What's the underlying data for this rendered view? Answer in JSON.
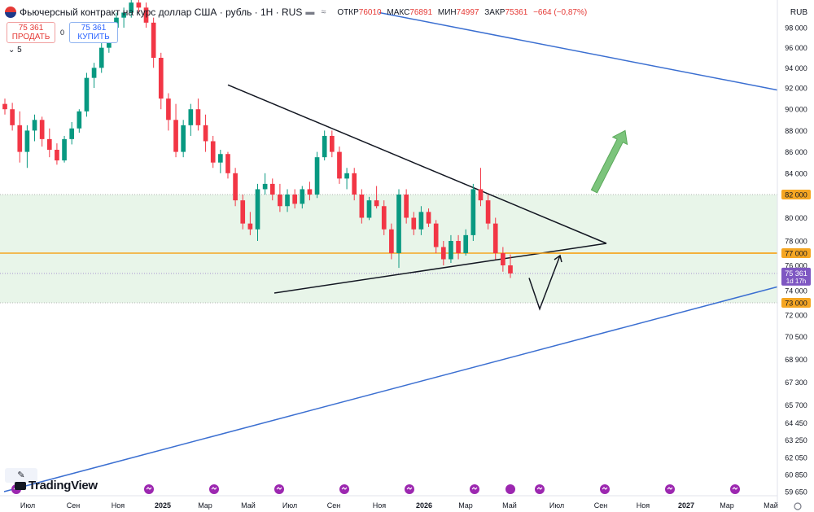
{
  "header": {
    "title": "Фьючерсный контракт на курс доллар США · рубль · 1Н · RUS",
    "open_label": "ОТКР",
    "open": "76010",
    "high_label": "МАКС",
    "high": "76891",
    "low_label": "МИН",
    "low": "74997",
    "close_label": "ЗАКР",
    "close": "75361",
    "change": "−664 (−0,87%)"
  },
  "trade": {
    "sell_price": "75 361",
    "sell_label": "ПРОДАТЬ",
    "spread": "0",
    "buy_price": "75 361",
    "buy_label": "КУПИТЬ"
  },
  "indicator_count": "5",
  "currency": "RUB",
  "logo_text": "TradingView",
  "colors": {
    "up": "#089981",
    "down": "#f23645",
    "zone": "#e8f5e9",
    "channel": "#3b6fd1",
    "triangle": "#131722",
    "level": "#f5a623",
    "arrow_green": "#7cc47c",
    "price_tag": "#7e57c2"
  },
  "chart_data": {
    "type": "candlestick",
    "x_ticks": [
      "Июл",
      "Сен",
      "Ноя",
      "2025",
      "Мар",
      "Май",
      "Июл",
      "Сен",
      "Ноя",
      "2026",
      "Мар",
      "Май",
      "Июл",
      "Сен",
      "Ноя",
      "2027",
      "Мар",
      "Май"
    ],
    "y_ticks": [
      "98 000",
      "96 000",
      "94 000",
      "92 000",
      "90 000",
      "88 000",
      "86 000",
      "84 000",
      "82 000",
      "80 000",
      "78 000",
      "77 000",
      "76 000",
      "74 000",
      "73 000",
      "72 000",
      "70 500",
      "68 900",
      "67 300",
      "65 700",
      "64 450",
      "63 250",
      "62 050",
      "60 850",
      "59 650"
    ],
    "levels": [
      {
        "label": "82 000",
        "value": 82000
      },
      {
        "label": "77 000",
        "value": 77000
      },
      {
        "label": "73 000",
        "value": 73000
      }
    ],
    "current_price": {
      "label": "75 361",
      "countdown": "1d 17h",
      "value": 75361
    },
    "zone": [
      73000,
      82000
    ],
    "candles_ohlc": [
      [
        90500,
        91000,
        89500,
        90000
      ],
      [
        90000,
        90600,
        88000,
        88500
      ],
      [
        88500,
        89800,
        85000,
        86000
      ],
      [
        86000,
        88500,
        84500,
        88000
      ],
      [
        88000,
        89500,
        87000,
        89000
      ],
      [
        89000,
        89300,
        86500,
        87200
      ],
      [
        87200,
        88200,
        85500,
        86200
      ],
      [
        86200,
        86800,
        84800,
        85200
      ],
      [
        85200,
        87500,
        85000,
        87200
      ],
      [
        87200,
        88800,
        86700,
        88200
      ],
      [
        88200,
        90000,
        87800,
        89800
      ],
      [
        89800,
        93500,
        89300,
        93000
      ],
      [
        93000,
        94500,
        92000,
        94000
      ],
      [
        94000,
        96500,
        93500,
        96000
      ],
      [
        96000,
        98500,
        95500,
        98000
      ],
      [
        98000,
        99500,
        97000,
        99000
      ],
      [
        99000,
        100000,
        98000,
        99500
      ],
      [
        99500,
        101000,
        99000,
        100500
      ],
      [
        100500,
        101500,
        99500,
        100000
      ],
      [
        100000,
        100500,
        98000,
        98500
      ],
      [
        98500,
        99000,
        94000,
        95000
      ],
      [
        95000,
        95500,
        90000,
        91000
      ],
      [
        91000,
        91500,
        88000,
        89000
      ],
      [
        89000,
        90500,
        85500,
        86000
      ],
      [
        86000,
        89000,
        85500,
        88500
      ],
      [
        88500,
        90500,
        87500,
        90000
      ],
      [
        90000,
        91000,
        88000,
        88500
      ],
      [
        88500,
        89500,
        86000,
        87000
      ],
      [
        87000,
        87500,
        84500,
        85000
      ],
      [
        85000,
        86200,
        84000,
        85800
      ],
      [
        85800,
        86000,
        83500,
        84000
      ],
      [
        84000,
        84500,
        81000,
        81500
      ],
      [
        81500,
        82000,
        79000,
        79500
      ],
      [
        79500,
        80500,
        78500,
        79000
      ],
      [
        79000,
        83000,
        78000,
        82500
      ],
      [
        82500,
        84000,
        82000,
        83000
      ],
      [
        83000,
        83500,
        81500,
        82000
      ],
      [
        82000,
        83000,
        80500,
        81000
      ],
      [
        81000,
        82500,
        80500,
        82000
      ],
      [
        82000,
        82500,
        80800,
        81200
      ],
      [
        81200,
        82800,
        80800,
        82500
      ],
      [
        82500,
        83200,
        81500,
        82000
      ],
      [
        82000,
        86000,
        81700,
        85500
      ],
      [
        85500,
        88000,
        85200,
        87500
      ],
      [
        87500,
        88000,
        85500,
        86000
      ],
      [
        86000,
        86500,
        83000,
        83500
      ],
      [
        83500,
        84500,
        82500,
        84000
      ],
      [
        84000,
        84500,
        81500,
        82000
      ],
      [
        82000,
        82500,
        79500,
        80000
      ],
      [
        80000,
        81800,
        79800,
        81500
      ],
      [
        81500,
        82800,
        80800,
        81000
      ],
      [
        81000,
        81500,
        78500,
        79000
      ],
      [
        79000,
        79500,
        76500,
        77000
      ],
      [
        77000,
        82500,
        75800,
        82000
      ],
      [
        82000,
        82500,
        79500,
        80000
      ],
      [
        80000,
        80500,
        78500,
        79000
      ],
      [
        79000,
        81000,
        78500,
        80500
      ],
      [
        80500,
        80800,
        79200,
        79500
      ],
      [
        79500,
        79800,
        77000,
        77500
      ],
      [
        77500,
        78000,
        76000,
        76500
      ],
      [
        76500,
        78500,
        76200,
        78000
      ],
      [
        78000,
        78500,
        76500,
        77000
      ],
      [
        77000,
        79000,
        76800,
        78500
      ],
      [
        78500,
        83000,
        78000,
        82500
      ],
      [
        82500,
        84500,
        81000,
        81500
      ],
      [
        81500,
        82000,
        79000,
        79500
      ],
      [
        79500,
        80000,
        76500,
        77000
      ],
      [
        77000,
        77500,
        75500,
        76000
      ],
      [
        76000,
        76891,
        74997,
        75361
      ]
    ],
    "trendlines": [
      {
        "name": "channel-top",
        "points": [
          [
            "Ноя 2025",
            99500
          ],
          [
            "Май 2027",
            91800
          ]
        ]
      },
      {
        "name": "channel-bottom",
        "points": [
          [
            "Июн 2024",
            59650
          ],
          [
            "Май 2027",
            74300
          ]
        ]
      },
      {
        "name": "triangle-top",
        "points": [
          [
            "Апр 2025",
            92300
          ],
          [
            "Авг 2026",
            77800
          ]
        ]
      },
      {
        "name": "triangle-bottom",
        "points": [
          [
            "Июн 2025",
            73800
          ],
          [
            "Авг 2026",
            77800
          ]
        ]
      },
      {
        "name": "orange-resistance",
        "points": [
          [
            "Апр 2026",
            77000
          ],
          [
            "Май 2027",
            77000
          ]
        ]
      }
    ],
    "annotations": [
      {
        "type": "arrow",
        "color": "black",
        "path": [
          [
            "Май 2026",
            75000
          ],
          [
            "Июн 2026",
            72500
          ],
          [
            "Июн 2026",
            76800
          ]
        ]
      },
      {
        "type": "arrow",
        "color": "green",
        "from": [
          "Июл 2026",
          82300
        ],
        "to": [
          "Авг 2026",
          88000
        ]
      }
    ]
  }
}
